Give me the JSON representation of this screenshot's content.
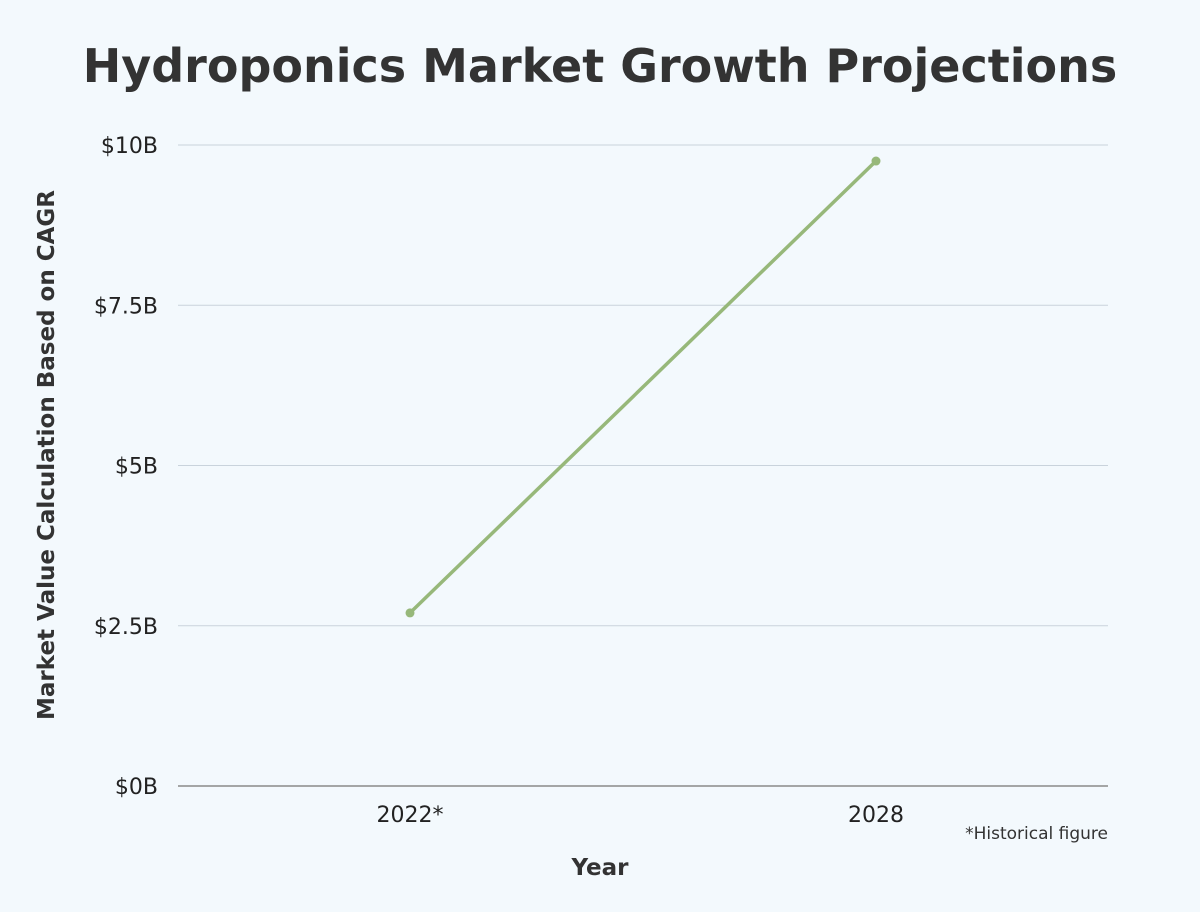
{
  "chart_data": {
    "type": "line",
    "title": "Hydroponics Market Growth Projections",
    "xlabel": "Year",
    "ylabel": "Market Value Calculation Based on CAGR",
    "categories": [
      "2022*",
      "2028"
    ],
    "series": [
      {
        "values": [
          2.7,
          9.75
        ]
      }
    ],
    "ylim": [
      0,
      10
    ],
    "yticks": [
      {
        "value": 0,
        "label": "$0B"
      },
      {
        "value": 2.5,
        "label": "$2.5B"
      },
      {
        "value": 5,
        "label": "$5B"
      },
      {
        "value": 7.5,
        "label": "$7.5B"
      },
      {
        "value": 10,
        "label": "$10B"
      }
    ],
    "grid": true,
    "legend": "none",
    "footnote": "*Historical figure",
    "colors": {
      "line": "#97b87a",
      "grid": "#c9d3dc",
      "axis": "#8a8a8a",
      "background": "#f3f9fd"
    }
  }
}
